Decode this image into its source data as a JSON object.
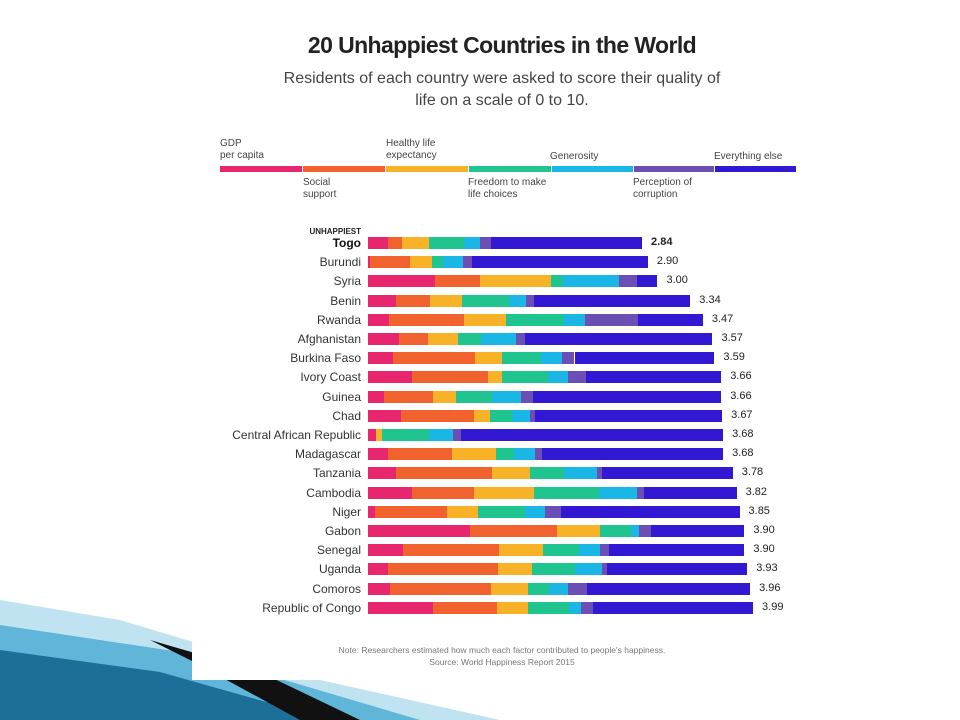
{
  "header": {
    "title": "20 Unhappiest Countries in the World",
    "subtitle": "Residents of each country were asked to score their quality of life on a scale of 0 to 10."
  },
  "note": {
    "line1": "Note: Researchers estimated how much each factor contributed to people's happiness.",
    "line2": "Source: World Happiness Report 2015"
  },
  "colors": {
    "gdp": "#e8266e",
    "social": "#f2622e",
    "health": "#f7b228",
    "freedom": "#1fc48f",
    "generosity": "#19b6e6",
    "corruption": "#6b4fb5",
    "else": "#3318d3"
  },
  "chart_data": {
    "type": "bar",
    "orientation": "horizontal",
    "stacked": true,
    "title": "20 Unhappiest Countries in the World",
    "subtitle": "Residents of each country were asked to score their quality of life on a scale of 0 to 10.",
    "group_label": "UNHAPPIEST",
    "legend": [
      {
        "key": "gdp",
        "label": "GDP\nper capita"
      },
      {
        "key": "social",
        "label": "Social\nsupport"
      },
      {
        "key": "health",
        "label": "Healthy life\nexpectancy"
      },
      {
        "key": "freedom",
        "label": "Freedom to make\nlife choices"
      },
      {
        "key": "generosity",
        "label": "Generosity"
      },
      {
        "key": "corruption",
        "label": "Perception of\ncorruption"
      },
      {
        "key": "else",
        "label": "Everything else"
      }
    ],
    "categories": [
      "Togo",
      "Burundi",
      "Syria",
      "Benin",
      "Rwanda",
      "Afghanistan",
      "Burkina Faso",
      "Ivory Coast",
      "Guinea",
      "Chad",
      "Central African Republic",
      "Madagascar",
      "Tanzania",
      "Cambodia",
      "Niger",
      "Gabon",
      "Senegal",
      "Uganda",
      "Comoros",
      "Republic of Congo"
    ],
    "totals": [
      "2.84",
      "2.90",
      "3.00",
      "3.34",
      "3.47",
      "3.57",
      "3.59",
      "3.66",
      "3.66",
      "3.67",
      "3.68",
      "3.68",
      "3.78",
      "3.82",
      "3.85",
      "3.90",
      "3.90",
      "3.93",
      "3.96",
      "3.99"
    ],
    "series": [
      {
        "key": "gdp",
        "name": "GDP per capita",
        "values": [
          0.21,
          0.02,
          0.69,
          0.29,
          0.22,
          0.32,
          0.26,
          0.46,
          0.17,
          0.34,
          0.08,
          0.21,
          0.29,
          0.46,
          0.07,
          1.06,
          0.36,
          0.21,
          0.23,
          0.67
        ]
      },
      {
        "key": "social",
        "name": "Social support",
        "values": [
          0.14,
          0.42,
          0.47,
          0.35,
          0.77,
          0.3,
          0.85,
          0.78,
          0.5,
          0.76,
          0.0,
          0.66,
          1.0,
          0.64,
          0.75,
          0.9,
          1.0,
          1.14,
          1.04,
          0.67
        ]
      },
      {
        "key": "health",
        "name": "Healthy life expectancy",
        "values": [
          0.28,
          0.22,
          0.74,
          0.33,
          0.44,
          0.31,
          0.28,
          0.15,
          0.24,
          0.16,
          0.06,
          0.46,
          0.39,
          0.62,
          0.32,
          0.44,
          0.45,
          0.35,
          0.39,
          0.32
        ]
      },
      {
        "key": "freedom",
        "name": "Freedom to make life choices",
        "values": [
          0.36,
          0.12,
          0.12,
          0.49,
          0.6,
          0.24,
          0.4,
          0.48,
          0.38,
          0.23,
          0.49,
          0.18,
          0.35,
          0.67,
          0.49,
          0.33,
          0.38,
          0.44,
          0.22,
          0.42
        ]
      },
      {
        "key": "generosity",
        "name": "Generosity",
        "values": [
          0.17,
          0.2,
          0.58,
          0.18,
          0.22,
          0.36,
          0.22,
          0.2,
          0.3,
          0.19,
          0.25,
          0.22,
          0.34,
          0.4,
          0.2,
          0.08,
          0.21,
          0.28,
          0.19,
          0.13
        ]
      },
      {
        "key": "corruption",
        "name": "Perception of corruption",
        "values": [
          0.11,
          0.1,
          0.19,
          0.08,
          0.55,
          0.1,
          0.13,
          0.19,
          0.12,
          0.05,
          0.08,
          0.07,
          0.06,
          0.07,
          0.17,
          0.12,
          0.1,
          0.06,
          0.2,
          0.12
        ]
      },
      {
        "key": "else",
        "name": "Everything else",
        "values": [
          1.57,
          1.82,
          0.21,
          1.62,
          0.67,
          1.94,
          1.45,
          1.4,
          1.95,
          1.94,
          2.72,
          1.88,
          1.35,
          0.96,
          1.85,
          0.97,
          1.4,
          1.45,
          1.69,
          1.66
        ]
      }
    ],
    "xlim": [
      0,
      4.0
    ],
    "grid": false
  }
}
